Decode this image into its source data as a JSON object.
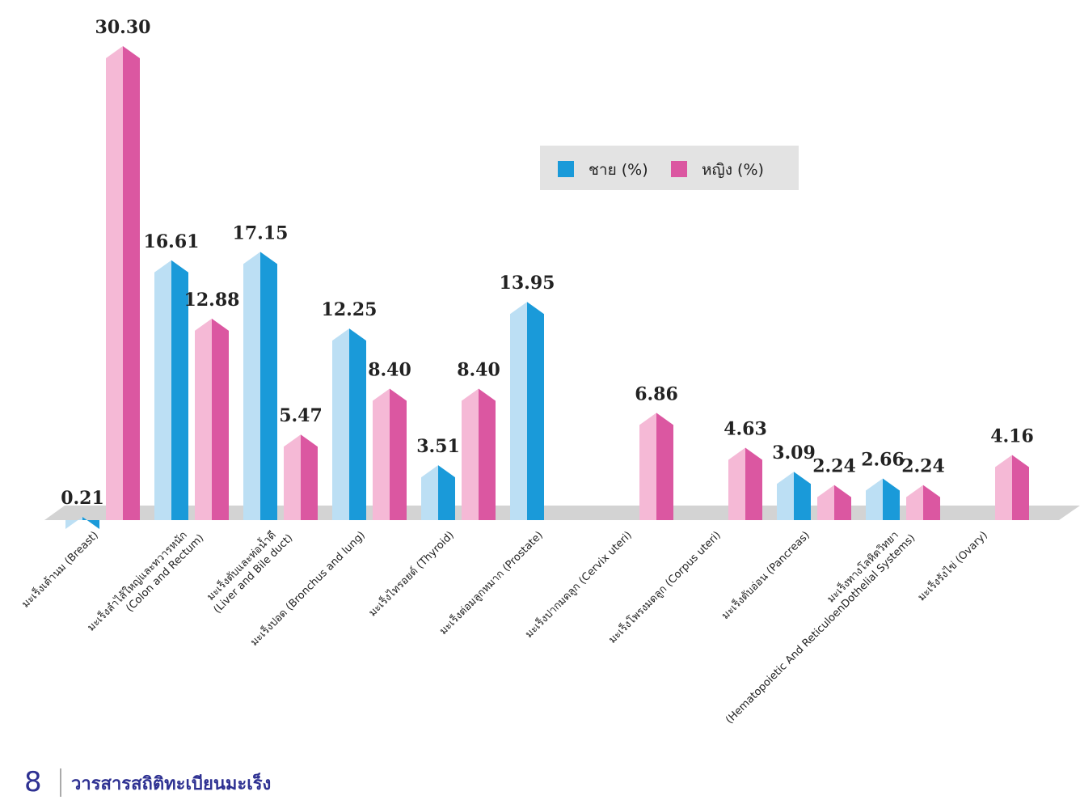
{
  "chart_data": {
    "type": "bar",
    "categories": [
      "มะเร็งเต้านม (Breast)",
      "มะเร็งลำไส้ใหญ่และทวารหนัก\n(Colon and Rectum)",
      "มะเร็งตับและท่อน้ำดี\n(Liver and Bile duct)",
      "มะเร็งปอด (Bronchus and lung)",
      "มะเร็งไทรอยด์ (Thyroid)",
      "มะเร็งต่อมลูกหมาก (Prostate)",
      "มะเร็งปากมดลูก (Cervix uteri)",
      "มะเร็งโพรงมดลูก (Corpus uteri)",
      "มะเร็งตับอ่อน (Pancreas)",
      "มะเร็งทางโลหิตวิทยา\n(Hematopoietic And ReticuloenDothelial Systems)",
      "มะเร็งรังไข่ (Ovary)"
    ],
    "series": [
      {
        "name": "ชาย (%)",
        "color": "#1a9ad9",
        "light_color": "#bcdff4",
        "values": [
          0.21,
          16.61,
          17.15,
          12.25,
          3.51,
          13.95,
          null,
          null,
          3.09,
          2.66,
          null
        ],
        "value_labels": [
          "0.21",
          "16.61",
          "17.15",
          "12.25",
          "3.51",
          "13.95",
          null,
          null,
          "3.09",
          "2.66",
          null
        ]
      },
      {
        "name": "หญิง (%)",
        "color": "#db57a1",
        "light_color": "#f5b9d6",
        "values": [
          30.3,
          12.88,
          5.47,
          8.4,
          8.4,
          null,
          6.86,
          4.63,
          2.24,
          2.24,
          4.16
        ],
        "value_labels": [
          "30.30",
          "12.88",
          "5.47",
          "8.40",
          "8.40",
          null,
          "6.86",
          "4.63",
          "2.24",
          "2.24",
          "4.16"
        ]
      }
    ]
  },
  "footer": {
    "page": "8",
    "title": "วารสารสถิติทะเบียนมะเร็ง"
  }
}
